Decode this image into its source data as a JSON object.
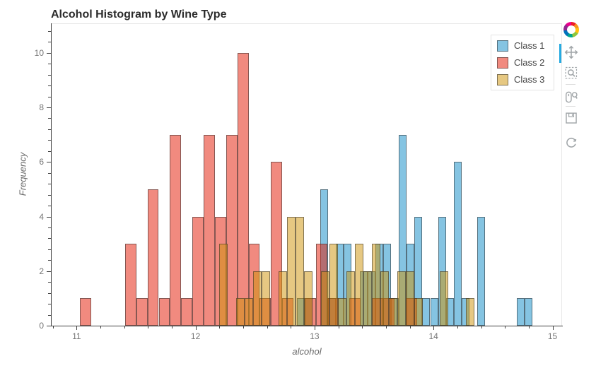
{
  "title": "Alcohol Histogram by Wine Type",
  "colors": {
    "class1_shown": "#85c4e2",
    "class2_shown": "#f18a7d",
    "class3_shown": "#e6c882",
    "active_tool_indicator": "#26aae1",
    "axis_line": "#3f3f3f",
    "tick_label": "#757575"
  },
  "legend": {
    "position": "top_right",
    "items": [
      {
        "label": "Class 1"
      },
      {
        "label": "Class 2"
      },
      {
        "label": "Class 3"
      }
    ]
  },
  "toolbar": {
    "logo": "bokeh-logo",
    "tools": [
      {
        "name": "pan",
        "active": true
      },
      {
        "name": "box-zoom",
        "active": false
      },
      {
        "name": "wheel-zoom",
        "active": false
      },
      {
        "name": "save",
        "active": false
      },
      {
        "name": "reset",
        "active": false
      }
    ]
  },
  "chart_data": {
    "type": "bar",
    "subtype": "histogram",
    "title": "Alcohol Histogram by Wine Type",
    "xlabel": "alcohol",
    "ylabel": "Frequency",
    "x_range": [
      10.79,
      15.08
    ],
    "y_range": [
      0,
      11.08
    ],
    "x_ticks": [
      11,
      12,
      13,
      14,
      15
    ],
    "x_minor_step": 0.2,
    "y_ticks": [
      0,
      2,
      4,
      6,
      8,
      10
    ],
    "y_minor_step": 0.4,
    "grid": false,
    "legend_position": "top_right",
    "series": [
      {
        "name": "Class 1",
        "fill": "rgba(11,137,197,0.5)",
        "bin_start": 12.85,
        "bin_width": 0.066,
        "counts": [
          1,
          1,
          0,
          5,
          1,
          3,
          3,
          0,
          2,
          2,
          3,
          3,
          1,
          7,
          3,
          4,
          1,
          1,
          4,
          1,
          6,
          1,
          0,
          4,
          0,
          0,
          0,
          0,
          1,
          1
        ]
      },
      {
        "name": "Class 2",
        "fill": "rgba(227,21,0,0.5)",
        "bin_start": 11.03,
        "bin_width": 0.0943333,
        "counts": [
          1,
          0,
          0,
          0,
          3,
          1,
          5,
          1,
          7,
          1,
          4,
          7,
          4,
          7,
          10,
          3,
          1,
          6,
          1,
          0,
          1,
          3,
          1,
          0,
          1,
          0,
          1,
          1,
          0,
          1
        ]
      },
      {
        "name": "Class 3",
        "fill": "rgba(205,145,5,0.5)",
        "bin_start": 12.2,
        "bin_width": 0.0713333,
        "counts": [
          3,
          0,
          1,
          1,
          2,
          2,
          0,
          2,
          4,
          4,
          2,
          0,
          2,
          3,
          1,
          2,
          3,
          2,
          3,
          2,
          1,
          2,
          2,
          1,
          0,
          0,
          2,
          0,
          0,
          1
        ]
      }
    ]
  }
}
